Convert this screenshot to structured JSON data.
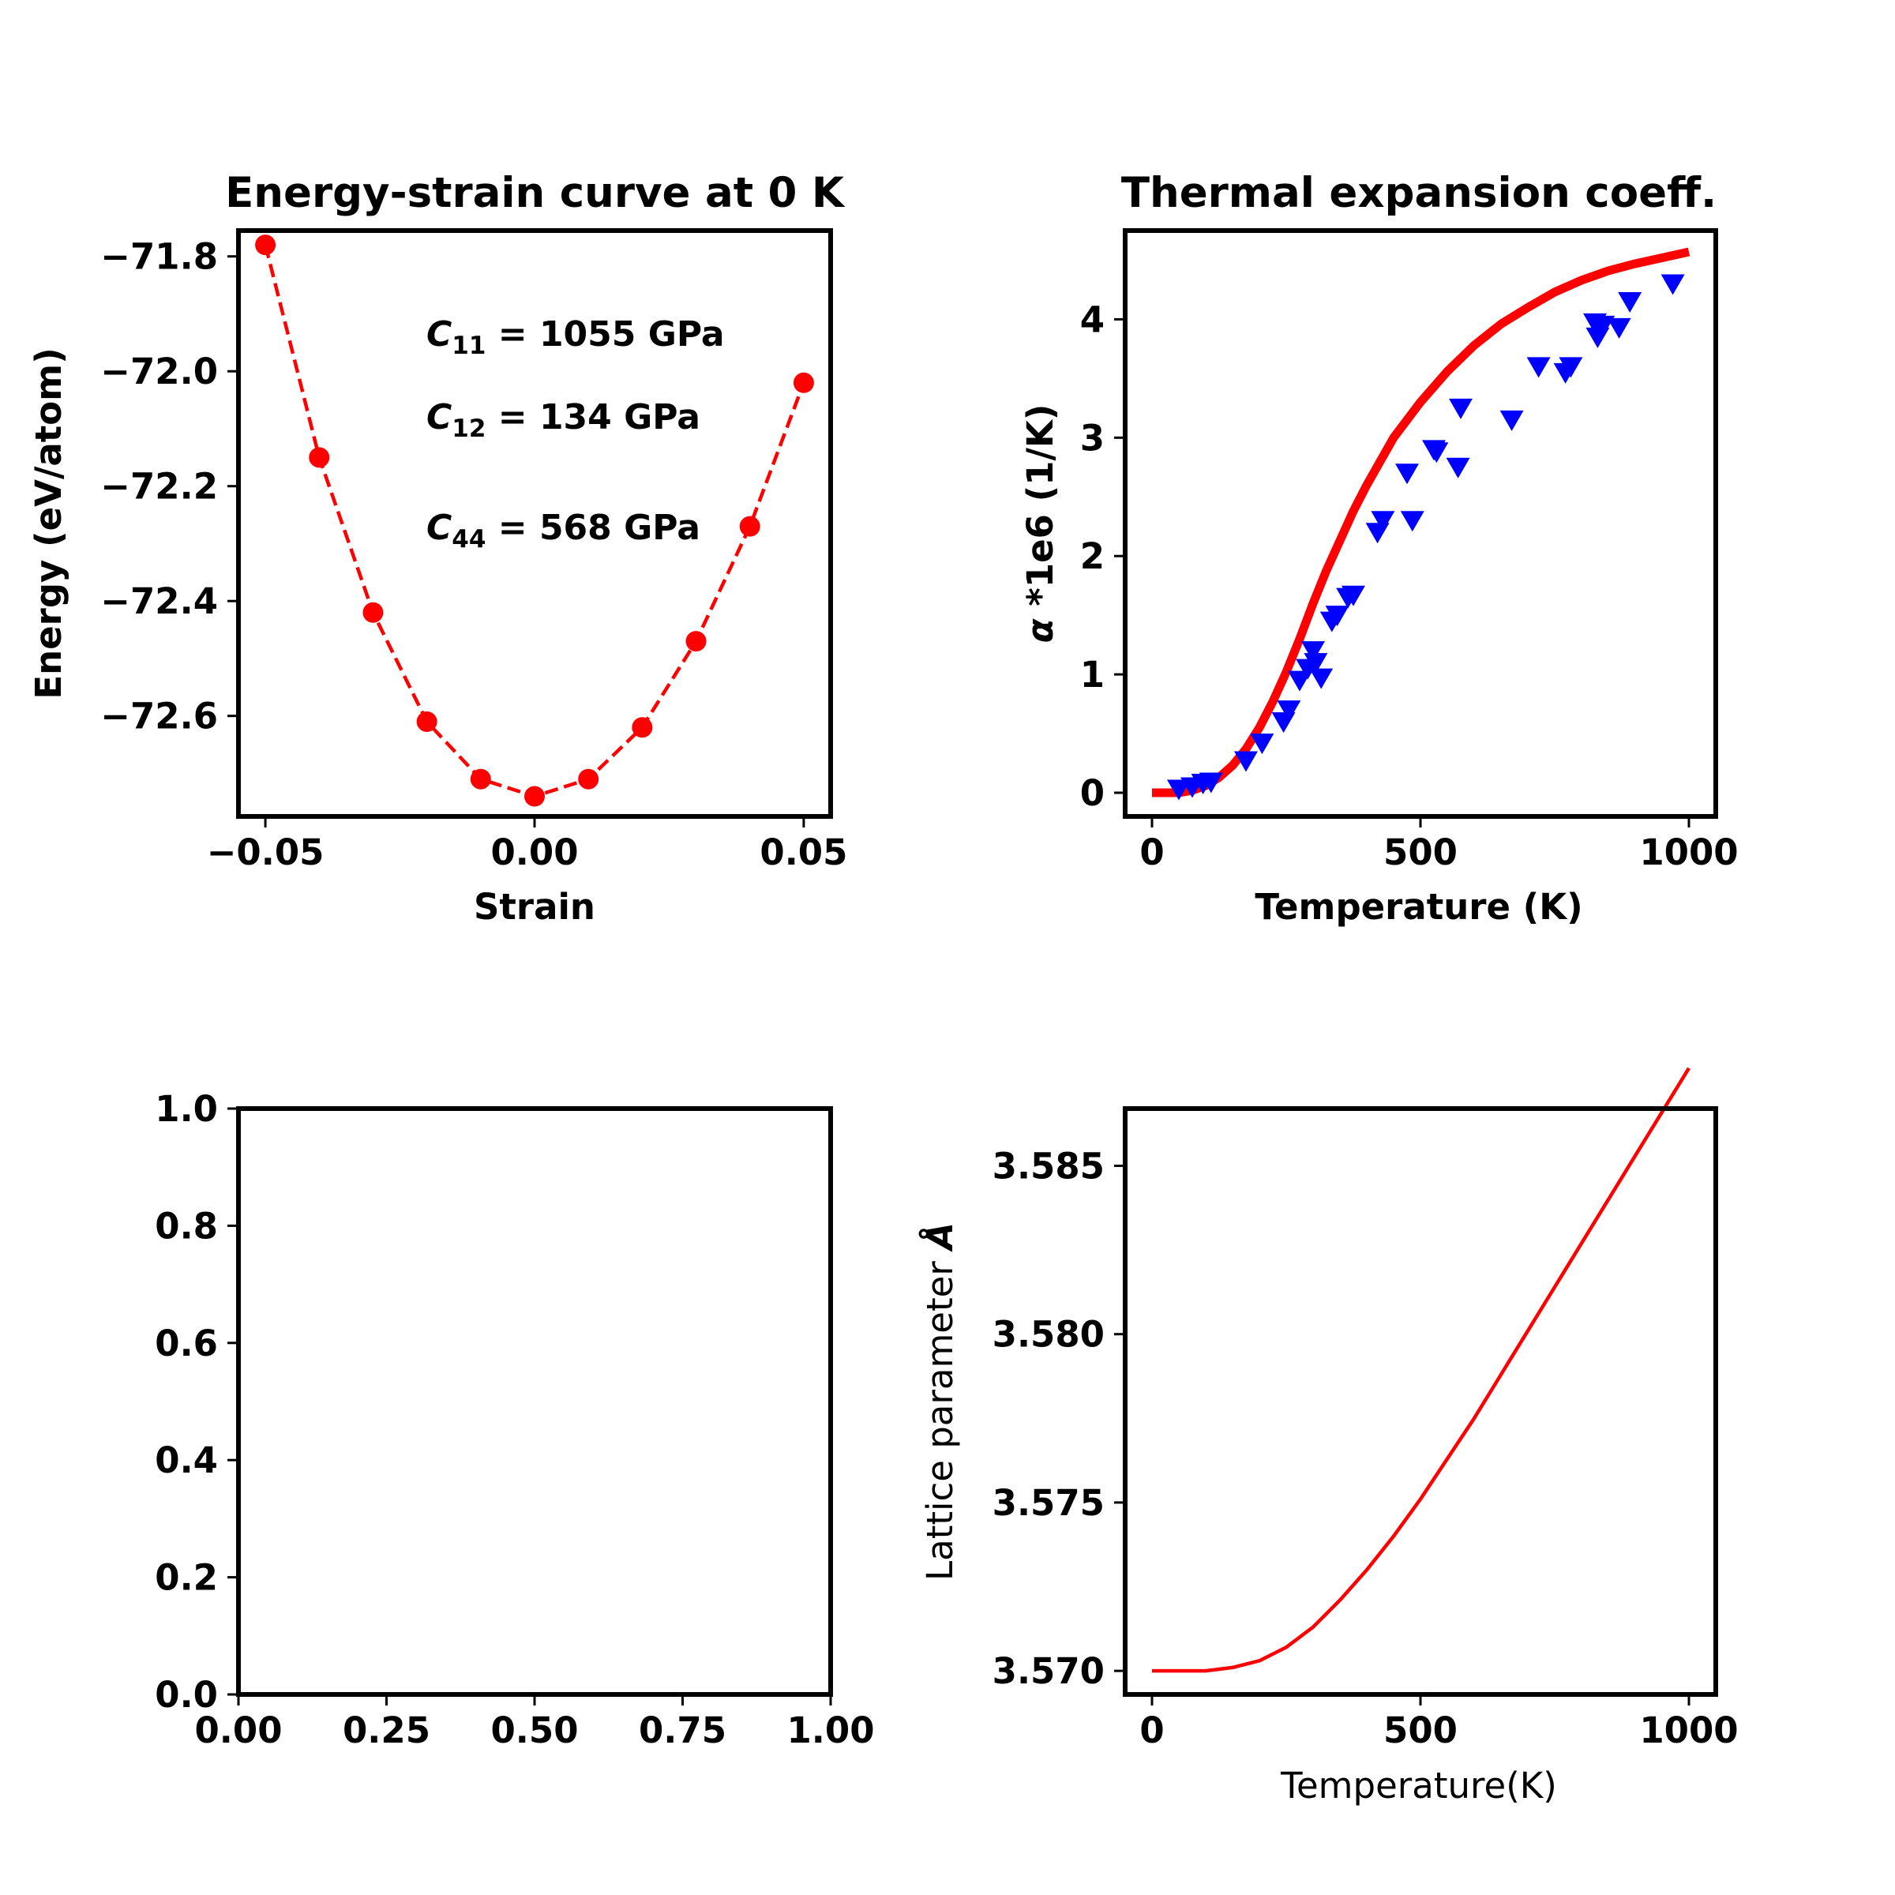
{
  "chart_data": [
    {
      "type": "line",
      "title": "Energy-strain curve at 0 K",
      "xlabel": "Strain",
      "ylabel": "Energy (eV/atom)",
      "xlim": [
        -0.055,
        0.055
      ],
      "ylim": [
        -72.775,
        -71.755
      ],
      "xticks": [
        -0.05,
        0.0,
        0.05
      ],
      "xtick_labels": [
        "−0.05",
        "0.00",
        "0.05"
      ],
      "yticks": [
        -71.8,
        -72.0,
        -72.2,
        -72.4,
        -72.6
      ],
      "ytick_labels": [
        "−71.8",
        "−72.0",
        "−72.2",
        "−72.4",
        "−72.6"
      ],
      "series": [
        {
          "color": "#ff0000",
          "style": "dashed line with circle markers",
          "x": [
            -0.05,
            -0.04,
            -0.03,
            -0.02,
            -0.01,
            0.0,
            0.01,
            0.02,
            0.03,
            0.04,
            0.05
          ],
          "y": [
            -71.78,
            -72.15,
            -72.42,
            -72.61,
            -72.71,
            -72.74,
            -72.71,
            -72.62,
            -72.47,
            -72.27,
            -72.02
          ]
        }
      ],
      "annotations": [
        {
          "sym": "C",
          "sub": "11",
          "rest": " = 1055 GPa"
        },
        {
          "sym": "C",
          "sub": "12",
          "rest": " = 134 GPa"
        },
        {
          "sym": "C",
          "sub": "44",
          "rest": " = 568 GPa"
        }
      ]
    },
    {
      "type": "scatter",
      "title": "Thermal expansion coeff.",
      "xlabel": "Temperature (K)",
      "ylabel_greek": "α",
      "ylabel": " *1e6 (1/K)",
      "xlim": [
        -50,
        1050
      ],
      "ylim": [
        -0.2,
        4.75
      ],
      "xticks": [
        0,
        500,
        1000
      ],
      "xtick_labels": [
        "0",
        "500",
        "1000"
      ],
      "yticks": [
        0,
        1,
        2,
        3,
        4
      ],
      "ytick_labels": [
        "0",
        "1",
        "2",
        "3",
        "4"
      ],
      "series": [
        {
          "kind": "line",
          "color": "#ff0000",
          "x": [
            0,
            25,
            50,
            75,
            100,
            125,
            150,
            175,
            200,
            225,
            250,
            275,
            300,
            325,
            350,
            375,
            400,
            425,
            450,
            475,
            500,
            550,
            600,
            650,
            700,
            750,
            800,
            850,
            900,
            950,
            1000
          ],
          "y": [
            0.0,
            0.0,
            0.0,
            0.02,
            0.06,
            0.13,
            0.23,
            0.37,
            0.55,
            0.77,
            1.02,
            1.3,
            1.6,
            1.88,
            2.13,
            2.38,
            2.6,
            2.8,
            3.0,
            3.15,
            3.3,
            3.56,
            3.78,
            3.96,
            4.1,
            4.23,
            4.33,
            4.41,
            4.47,
            4.52,
            4.57
          ]
        },
        {
          "kind": "scatter",
          "marker": "triangle-down",
          "color": "#0000ff",
          "x": [
            50,
            75,
            95,
            110,
            175,
            205,
            245,
            255,
            275,
            290,
            300,
            305,
            315,
            335,
            345,
            365,
            375,
            420,
            430,
            475,
            485,
            525,
            530,
            570,
            575,
            670,
            720,
            770,
            780,
            825,
            830,
            840,
            870,
            890,
            970
          ],
          "y": [
            0.03,
            0.05,
            0.08,
            0.09,
            0.27,
            0.42,
            0.6,
            0.7,
            0.95,
            1.05,
            1.2,
            1.1,
            0.97,
            1.45,
            1.5,
            1.65,
            1.67,
            2.2,
            2.3,
            2.7,
            2.3,
            2.9,
            2.88,
            2.75,
            3.25,
            3.15,
            3.6,
            3.55,
            3.6,
            3.97,
            3.85,
            3.95,
            3.93,
            4.15,
            4.3
          ]
        }
      ]
    },
    {
      "type": "line",
      "title": "",
      "xlabel": "",
      "ylabel": "",
      "xlim": [
        0,
        1
      ],
      "ylim": [
        0,
        1
      ],
      "xticks": [
        0,
        0.25,
        0.5,
        0.75,
        1.0
      ],
      "xtick_labels": [
        "0.00",
        "0.25",
        "0.50",
        "0.75",
        "1.00"
      ],
      "yticks": [
        0,
        0.2,
        0.4,
        0.6,
        0.8,
        1.0
      ],
      "ytick_labels": [
        "0.0",
        "0.2",
        "0.4",
        "0.6",
        "0.8",
        "1.0"
      ],
      "series": []
    },
    {
      "type": "line",
      "title": "",
      "xlabel": "Temperature(K)",
      "ylabel": "Lattice parameter ",
      "ylabel_bold": "Å",
      "xlim": [
        -50,
        1050
      ],
      "ylim": [
        3.5693,
        3.5867
      ],
      "xticks": [
        0,
        500,
        1000
      ],
      "xtick_labels": [
        "0",
        "500",
        "1000"
      ],
      "yticks": [
        3.57,
        3.575,
        3.58,
        3.585
      ],
      "ytick_labels": [
        "3.570",
        "3.575",
        "3.580",
        "3.585"
      ],
      "series": [
        {
          "color": "#ff0000",
          "x": [
            0,
            50,
            100,
            150,
            200,
            250,
            300,
            350,
            400,
            450,
            500,
            550,
            600,
            650,
            700,
            750,
            800,
            850,
            900,
            950,
            1000
          ],
          "y": [
            3.57,
            3.57,
            3.57,
            3.5701,
            3.5703,
            3.5707,
            3.5713,
            3.5721,
            3.573,
            3.574,
            3.5751,
            3.5763,
            3.5775,
            3.5788,
            3.5801,
            3.5814,
            3.5827,
            3.584,
            3.5853,
            3.5866,
            3.5879
          ]
        }
      ]
    }
  ]
}
